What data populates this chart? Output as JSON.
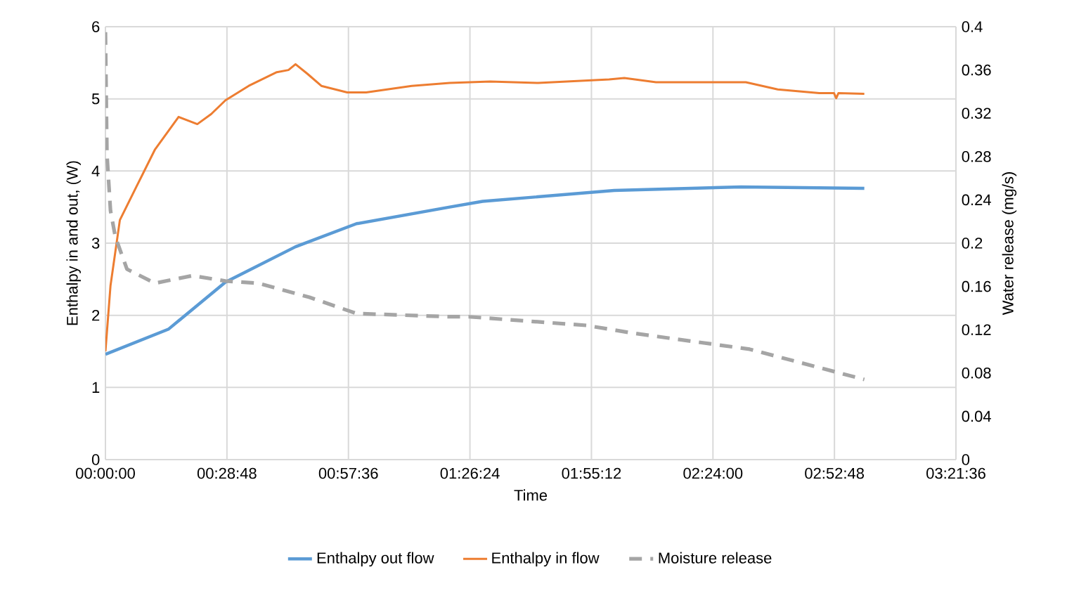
{
  "chart_data": {
    "type": "line",
    "xlabel": "Time",
    "ylabel": "Enthalpy  in and out, (W)",
    "y2label": "Water release (mg/s)",
    "xlim": [
      0,
      3.36
    ],
    "xticks": [
      {
        "value": 0,
        "label": "00:00:00"
      },
      {
        "value": 0.48,
        "label": "00:28:48"
      },
      {
        "value": 0.96,
        "label": "00:57:36"
      },
      {
        "value": 1.44,
        "label": "01:26:24"
      },
      {
        "value": 1.92,
        "label": "01:55:12"
      },
      {
        "value": 2.4,
        "label": "02:24:00"
      },
      {
        "value": 2.88,
        "label": "02:52:48"
      },
      {
        "value": 3.36,
        "label": "03:21:36"
      }
    ],
    "ylim": [
      0,
      6
    ],
    "yticks": [
      0,
      1,
      2,
      3,
      4,
      5,
      6
    ],
    "y2lim": [
      0,
      0.4
    ],
    "y2ticks": [
      0,
      0.04,
      0.08,
      0.12,
      0.16,
      0.2,
      0.24,
      0.28,
      0.32,
      0.36,
      0.4
    ],
    "grid": true,
    "legend": "bottom",
    "marker": "none",
    "series": [
      {
        "name": "Enthalpy out flow",
        "color": "#5b9bd5",
        "line_style": "solid",
        "x": [
          0,
          0.25,
          0.474,
          0.751,
          0.992,
          1.36,
          1.49,
          2.01,
          2.51,
          2.998
        ],
        "values": [
          1.46,
          1.81,
          2.46,
          2.95,
          3.27,
          3.5,
          3.58,
          3.73,
          3.78,
          3.76
        ]
      },
      {
        "name": "Enthalpy in flow",
        "color": "#ed7d31",
        "line_style": "solid",
        "x": [
          0,
          0.02,
          0.057,
          0.122,
          0.196,
          0.289,
          0.363,
          0.418,
          0.474,
          0.566,
          0.677,
          0.723,
          0.751,
          0.797,
          0.853,
          0.955,
          1.03,
          1.21,
          1.36,
          1.52,
          1.71,
          1.99,
          2.05,
          2.175,
          2.53,
          2.656,
          2.82,
          2.878,
          2.887,
          2.896,
          2.998
        ],
        "values": [
          1.5,
          2.41,
          3.32,
          3.78,
          4.3,
          4.75,
          4.65,
          4.79,
          4.98,
          5.18,
          5.37,
          5.4,
          5.48,
          5.35,
          5.18,
          5.09,
          5.09,
          5.18,
          5.22,
          5.24,
          5.22,
          5.27,
          5.29,
          5.23,
          5.23,
          5.13,
          5.08,
          5.08,
          5.01,
          5.08,
          5.07
        ]
      },
      {
        "name": "Moisture release",
        "color": "#a5a5a5",
        "line_style": "dashed",
        "axis": "y2",
        "x": [
          0,
          0.006,
          0.02,
          0.039,
          0.085,
          0.196,
          0.344,
          0.474,
          0.603,
          0.806,
          0.992,
          1.36,
          1.435,
          1.9,
          2.08,
          2.545,
          2.998
        ],
        "values": [
          0.395,
          0.282,
          0.23,
          0.206,
          0.176,
          0.163,
          0.17,
          0.165,
          0.163,
          0.15,
          0.135,
          0.132,
          0.132,
          0.124,
          0.117,
          0.102,
          0.074
        ]
      }
    ]
  }
}
